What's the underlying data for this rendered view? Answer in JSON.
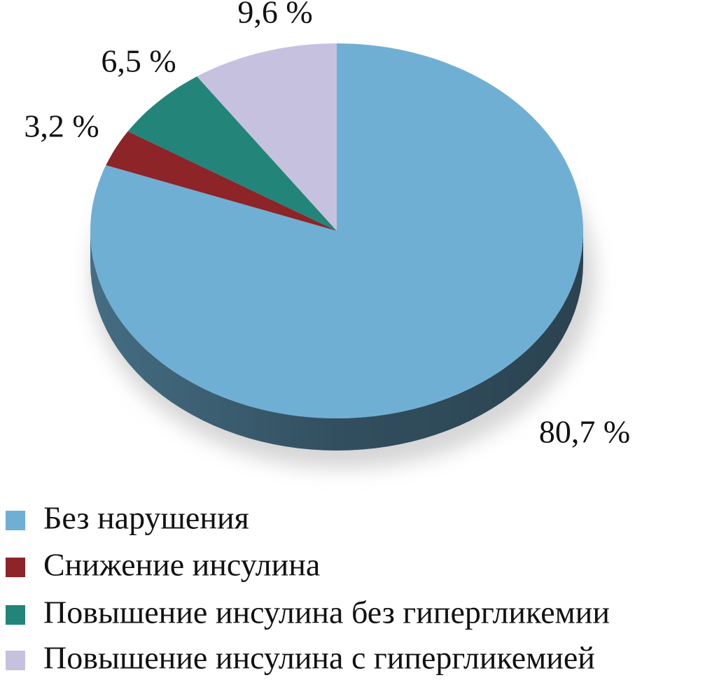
{
  "chart_data": {
    "type": "pie",
    "categories": [
      "Без нарушения",
      "Снижение инсулина",
      "Повышение инсулина без гипергликемии",
      "Повышение инсулина с гипергликемией"
    ],
    "values": [
      80.7,
      3.2,
      6.5,
      9.6
    ],
    "value_labels": [
      "80,7 %",
      "3,2 %",
      "6,5 %",
      "9,6 %"
    ],
    "colors": [
      "#70afd4",
      "#8c2428",
      "#23857a",
      "#c7c1e0"
    ],
    "legend": "bottom-left"
  }
}
